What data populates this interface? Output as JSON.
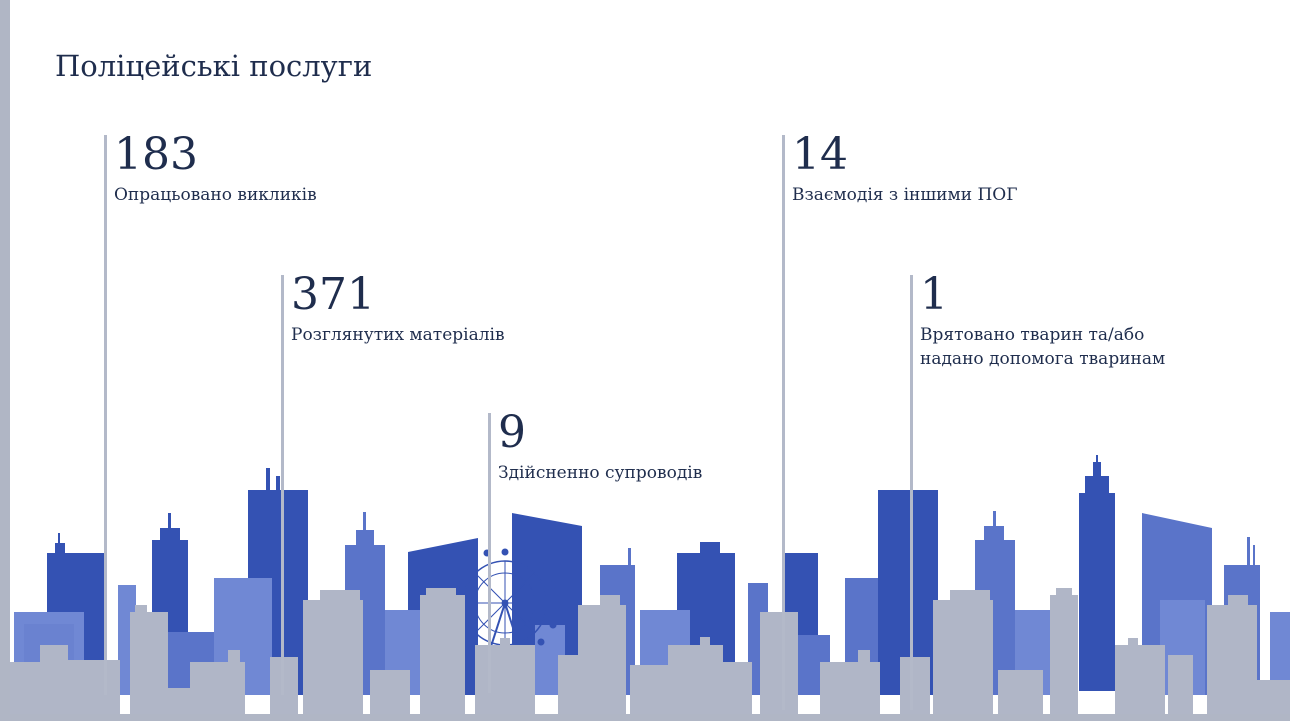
{
  "slide": {
    "title": "Поліцейські послуги"
  },
  "stats": [
    {
      "value": "183",
      "label": "Опрацьовано викликів"
    },
    {
      "value": "371",
      "label": "Розглянутих матеріалів"
    },
    {
      "value": "9",
      "label": "Здійсненно супроводів"
    },
    {
      "value": "14",
      "label": "Взаємодія з іншими ПОГ"
    },
    {
      "value": "1",
      "label": "Врятовано тварин та/або надано допомога тваринам"
    }
  ],
  "colors": {
    "title_text": "#1f2d4d",
    "leader_line": "#b3b9c9",
    "building_dark_blue": "#3452b3",
    "building_mid_blue": "#5a74c9",
    "building_light_blue": "#7088d4",
    "building_gray": "#b0b6c7"
  },
  "icons": {
    "skyline": "city-skyline-illustration",
    "ferris_wheel": "ferris-wheel-icon"
  }
}
